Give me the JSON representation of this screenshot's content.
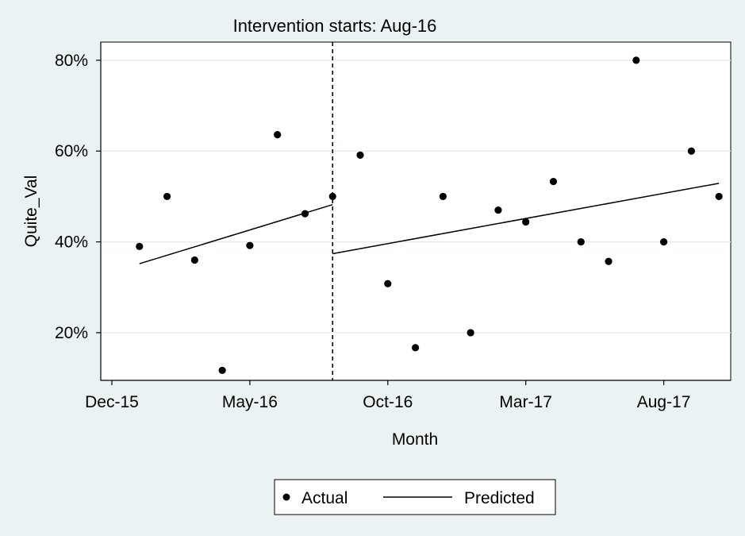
{
  "chart_data": {
    "type": "scatter",
    "title": "Intervention starts: Aug-16",
    "xlabel": "Month",
    "ylabel": "Quite_Val",
    "x_ticks": [
      "Dec-15",
      "May-16",
      "Oct-16",
      "Mar-17",
      "Aug-17"
    ],
    "y_ticks": [
      "20%",
      "40%",
      "60%",
      "80%"
    ],
    "y_tick_values": [
      20,
      40,
      60,
      80
    ],
    "ylim": [
      9.5,
      84
    ],
    "xlim": [
      "Nov-15",
      "Nov-17"
    ],
    "grid": true,
    "intervention_month": "Aug-16",
    "series": [
      {
        "name": "Actual",
        "kind": "scatter",
        "x": [
          "Jan-16",
          "Feb-16",
          "Mar-16",
          "Apr-16",
          "May-16",
          "Jun-16",
          "Jul-16",
          "Aug-16",
          "Sep-16",
          "Oct-16",
          "Nov-16",
          "Dec-16",
          "Jan-17",
          "Feb-17",
          "Mar-17",
          "Apr-17",
          "May-17",
          "Jun-17",
          "Jul-17",
          "Aug-17",
          "Sep-17",
          "Oct-17"
        ],
        "values": [
          39,
          50,
          36,
          11.7,
          39.2,
          63.6,
          46.2,
          50,
          59.1,
          30.8,
          16.7,
          50,
          20,
          47,
          44.4,
          53.3,
          40,
          35.7,
          80,
          40,
          60,
          50
        ]
      },
      {
        "name": "Predicted",
        "kind": "line",
        "segments": [
          {
            "x": [
              "Jan-16",
              "Aug-16"
            ],
            "values": [
              35.2,
              48.2
            ]
          },
          {
            "x": [
              "Aug-16",
              "Oct-17"
            ],
            "values": [
              37.4,
              52.9
            ]
          }
        ]
      }
    ],
    "legend": {
      "position": "bottom",
      "entries": [
        "Actual",
        "Predicted"
      ]
    }
  },
  "colors": {
    "background": "#eaf2f3",
    "plot_background": "#ffffff",
    "grid": "#e6ecee",
    "marks": "#000000"
  }
}
